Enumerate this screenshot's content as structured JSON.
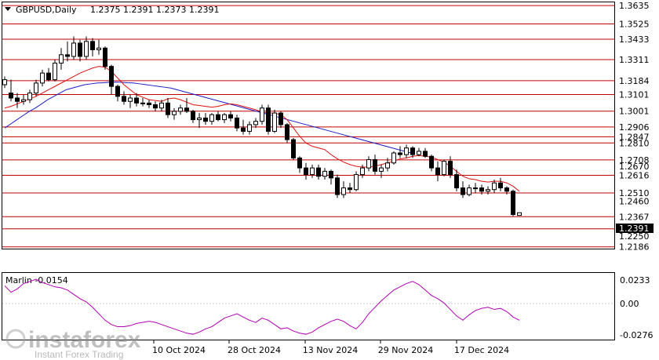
{
  "header": {
    "symbol": "GBPUSD,Daily",
    "ohlc": "1.2375 1.2391 1.2373 1.2391"
  },
  "indicator": {
    "label": "Marlin -0.0154",
    "levels": [
      "0.0233",
      "0.00",
      "-0.0276"
    ]
  },
  "watermark": {
    "brand": "instaforex",
    "tagline": "Instant Forex Trading"
  },
  "colors": {
    "level_line": "#c00000",
    "sma_fast": "#e01010",
    "sma_slow": "#1c1cc8",
    "oscillator": "#b000b0",
    "candle": "#000000",
    "price_tag_bg": "#000000"
  },
  "chart_data": [
    {
      "type": "candlestick",
      "title": "GBPUSD,Daily",
      "x_dates": [
        "10 Oct 2024",
        "28 Oct 2024",
        "13 Nov 2024",
        "29 Nov 2024",
        "17 Dec 2024"
      ],
      "resistance_levels": [
        "1.3635",
        "1.3525",
        "1.3433",
        "1.3311",
        "1.3184",
        "1.3101",
        "1.3001",
        "1.2906",
        "1.2847",
        "1.2810",
        "1.2708",
        "1.2616",
        "1.2510",
        "1.2367",
        "1.2294",
        "1.2186"
      ],
      "axis_ticks": [
        "1.2670",
        "1.2460",
        "1.2250"
      ],
      "current_price": "1.2391",
      "ylim": [
        1.218,
        1.365
      ],
      "candles": [
        [
          1.316,
          1.321,
          1.314,
          1.319
        ],
        [
          1.311,
          1.319,
          1.306,
          1.308
        ],
        [
          1.308,
          1.311,
          1.302,
          1.306
        ],
        [
          1.306,
          1.31,
          1.304,
          1.307
        ],
        [
          1.307,
          1.313,
          1.305,
          1.311
        ],
        [
          1.311,
          1.319,
          1.309,
          1.317
        ],
        [
          1.317,
          1.325,
          1.315,
          1.323
        ],
        [
          1.323,
          1.326,
          1.318,
          1.319
        ],
        [
          1.319,
          1.331,
          1.318,
          1.329
        ],
        [
          1.329,
          1.338,
          1.325,
          1.334
        ],
        [
          1.334,
          1.342,
          1.33,
          1.333
        ],
        [
          1.333,
          1.345,
          1.331,
          1.341
        ],
        [
          1.341,
          1.343,
          1.33,
          1.333
        ],
        [
          1.333,
          1.345,
          1.331,
          1.342
        ],
        [
          1.342,
          1.344,
          1.333,
          1.337
        ],
        [
          1.337,
          1.343,
          1.334,
          1.338
        ],
        [
          1.338,
          1.339,
          1.325,
          1.327
        ],
        [
          1.327,
          1.328,
          1.31,
          1.315
        ],
        [
          1.315,
          1.316,
          1.306,
          1.309
        ],
        [
          1.309,
          1.312,
          1.304,
          1.306
        ],
        [
          1.306,
          1.31,
          1.302,
          1.308
        ],
        [
          1.308,
          1.311,
          1.303,
          1.305
        ],
        [
          1.305,
          1.308,
          1.303,
          1.305
        ],
        [
          1.305,
          1.307,
          1.302,
          1.304
        ],
        [
          1.304,
          1.306,
          1.3,
          1.302
        ],
        [
          1.302,
          1.307,
          1.3,
          1.305
        ],
        [
          1.305,
          1.308,
          1.296,
          1.298
        ],
        [
          1.298,
          1.302,
          1.295,
          1.3
        ],
        [
          1.3,
          1.304,
          1.298,
          1.302
        ],
        [
          1.302,
          1.308,
          1.299,
          1.3
        ],
        [
          1.3,
          1.301,
          1.293,
          1.295
        ],
        [
          1.295,
          1.299,
          1.29,
          1.296
        ],
        [
          1.296,
          1.299,
          1.292,
          1.294
        ],
        [
          1.294,
          1.299,
          1.292,
          1.298
        ],
        [
          1.298,
          1.3,
          1.294,
          1.295
        ],
        [
          1.295,
          1.299,
          1.293,
          1.298
        ],
        [
          1.298,
          1.3,
          1.294,
          1.296
        ],
        [
          1.296,
          1.298,
          1.288,
          1.29
        ],
        [
          1.29,
          1.295,
          1.286,
          1.288
        ],
        [
          1.288,
          1.294,
          1.286,
          1.292
        ],
        [
          1.292,
          1.296,
          1.29,
          1.294
        ],
        [
          1.294,
          1.304,
          1.292,
          1.302
        ],
        [
          1.302,
          1.304,
          1.286,
          1.288
        ],
        [
          1.288,
          1.301,
          1.287,
          1.299
        ],
        [
          1.299,
          1.3,
          1.29,
          1.292
        ],
        [
          1.292,
          1.293,
          1.281,
          1.283
        ],
        [
          1.283,
          1.284,
          1.271,
          1.272
        ],
        [
          1.272,
          1.273,
          1.263,
          1.266
        ],
        [
          1.266,
          1.269,
          1.259,
          1.262
        ],
        [
          1.262,
          1.268,
          1.26,
          1.266
        ],
        [
          1.266,
          1.268,
          1.259,
          1.261
        ],
        [
          1.261,
          1.266,
          1.259,
          1.264
        ],
        [
          1.264,
          1.265,
          1.256,
          1.26
        ],
        [
          1.26,
          1.262,
          1.248,
          1.25
        ],
        [
          1.25,
          1.258,
          1.248,
          1.254
        ],
        [
          1.254,
          1.257,
          1.251,
          1.253
        ],
        [
          1.253,
          1.264,
          1.252,
          1.262
        ],
        [
          1.262,
          1.268,
          1.26,
          1.266
        ],
        [
          1.266,
          1.273,
          1.264,
          1.271
        ],
        [
          1.271,
          1.274,
          1.262,
          1.264
        ],
        [
          1.264,
          1.268,
          1.26,
          1.266
        ],
        [
          1.266,
          1.272,
          1.264,
          1.269
        ],
        [
          1.269,
          1.276,
          1.268,
          1.275
        ],
        [
          1.275,
          1.279,
          1.272,
          1.274
        ],
        [
          1.274,
          1.28,
          1.272,
          1.278
        ],
        [
          1.278,
          1.279,
          1.272,
          1.274
        ],
        [
          1.274,
          1.278,
          1.273,
          1.276
        ],
        [
          1.276,
          1.278,
          1.272,
          1.273
        ],
        [
          1.273,
          1.274,
          1.264,
          1.266
        ],
        [
          1.266,
          1.27,
          1.258,
          1.262
        ],
        [
          1.262,
          1.271,
          1.261,
          1.27
        ],
        [
          1.27,
          1.273,
          1.26,
          1.262
        ],
        [
          1.262,
          1.265,
          1.252,
          1.254
        ],
        [
          1.254,
          1.258,
          1.248,
          1.25
        ],
        [
          1.25,
          1.256,
          1.249,
          1.254
        ],
        [
          1.254,
          1.257,
          1.251,
          1.254
        ],
        [
          1.254,
          1.256,
          1.25,
          1.252
        ],
        [
          1.252,
          1.255,
          1.25,
          1.253
        ],
        [
          1.253,
          1.259,
          1.251,
          1.257
        ],
        [
          1.257,
          1.26,
          1.252,
          1.254
        ],
        [
          1.254,
          1.255,
          1.25,
          1.252
        ],
        [
          1.252,
          1.253,
          1.237,
          1.238
        ],
        [
          1.2375,
          1.2391,
          1.2373,
          1.2391
        ]
      ],
      "sma_fast": [
        1.302,
        1.303,
        1.3045,
        1.306,
        1.3075,
        1.309,
        1.311,
        1.313,
        1.315,
        1.317,
        1.319,
        1.321,
        1.323,
        1.3245,
        1.326,
        1.327,
        1.3265,
        1.324,
        1.32,
        1.316,
        1.313,
        1.31,
        1.3085,
        1.307,
        1.3065,
        1.306,
        1.3075,
        1.308,
        1.307,
        1.3055,
        1.304,
        1.3035,
        1.303,
        1.3025,
        1.303,
        1.304,
        1.3045,
        1.304,
        1.303,
        1.302,
        1.301,
        1.2995,
        1.299,
        1.299,
        1.298,
        1.295,
        1.29,
        1.285,
        1.281,
        1.279,
        1.278,
        1.277,
        1.274,
        1.2715,
        1.2695,
        1.268,
        1.267,
        1.2665,
        1.2665,
        1.267,
        1.268,
        1.269,
        1.27,
        1.2715,
        1.272,
        1.273,
        1.2735,
        1.273,
        1.2725,
        1.271,
        1.2695,
        1.267,
        1.264,
        1.261,
        1.2595,
        1.259,
        1.258,
        1.2575,
        1.258,
        1.258,
        1.257,
        1.255,
        1.252
      ],
      "sma_slow": [
        1.29,
        1.2925,
        1.295,
        1.2975,
        1.3,
        1.302,
        1.3045,
        1.307,
        1.309,
        1.311,
        1.313,
        1.314,
        1.315,
        1.316,
        1.3165,
        1.317,
        1.3172,
        1.3175,
        1.3176,
        1.3175,
        1.3172,
        1.317,
        1.3165,
        1.316,
        1.3155,
        1.315,
        1.3145,
        1.314,
        1.313,
        1.312,
        1.311,
        1.31,
        1.309,
        1.308,
        1.307,
        1.306,
        1.305,
        1.304,
        1.303,
        1.302,
        1.301,
        1.3,
        1.299,
        1.298,
        1.297,
        1.296,
        1.295,
        1.294,
        1.293,
        1.292,
        1.291,
        1.29,
        1.289,
        1.288,
        1.287,
        1.286,
        1.285,
        1.284,
        1.283,
        1.282,
        1.281,
        1.28,
        1.279,
        1.278,
        1.277,
        1.276,
        1.275
      ],
      "oscillator": [
        0.018,
        0.012,
        0.015,
        0.02,
        0.022,
        0.024,
        0.021,
        0.019,
        0.017,
        0.016,
        0.014,
        0.01,
        0.006,
        0.003,
        -0.002,
        -0.008,
        -0.014,
        -0.018,
        -0.02,
        -0.02,
        -0.019,
        -0.017,
        -0.016,
        -0.015,
        -0.016,
        -0.018,
        -0.02,
        -0.022,
        -0.024,
        -0.026,
        -0.027,
        -0.025,
        -0.022,
        -0.02,
        -0.016,
        -0.012,
        -0.01,
        -0.008,
        -0.011,
        -0.014,
        -0.016,
        -0.012,
        -0.014,
        -0.018,
        -0.022,
        -0.021,
        -0.024,
        -0.026,
        -0.027,
        -0.025,
        -0.021,
        -0.018,
        -0.015,
        -0.013,
        -0.015,
        -0.019,
        -0.022,
        -0.016,
        -0.008,
        -0.002,
        0.004,
        0.009,
        0.014,
        0.017,
        0.02,
        0.022,
        0.019,
        0.014,
        0.009,
        0.006,
        0.002,
        -0.004,
        -0.01,
        -0.014,
        -0.009,
        -0.005,
        -0.003,
        -0.002,
        -0.004,
        -0.003,
        -0.006,
        -0.011,
        -0.014
      ]
    }
  ]
}
